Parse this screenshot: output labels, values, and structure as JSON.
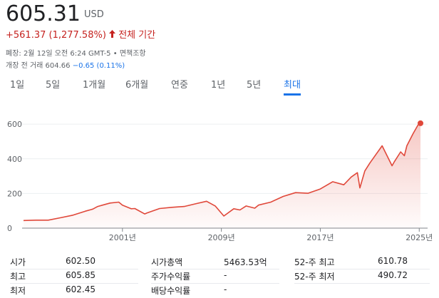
{
  "header": {
    "price": "605.31",
    "currency": "USD",
    "change": "+561.37 (1,277.58%)",
    "period": "전체 기간",
    "closed": "폐장: 2월 12일 오전 6:24 GMT-5 • ",
    "disclaimer": "면책조항",
    "premarket": "개장 전 거래 604.66",
    "premarket_change": "−0.65 (0.11%)"
  },
  "tabs": [
    "1일",
    "5일",
    "1개월",
    "6개월",
    "연중",
    "1년",
    "5년",
    "최대"
  ],
  "selected_tab": 7,
  "chart_data": {
    "type": "line",
    "color": "#e0483a",
    "grid": true,
    "x": [
      1993,
      1994,
      1995,
      1996,
      1997,
      1998,
      1998.6,
      1999,
      1999.5,
      2000,
      2000.7,
      2001,
      2001.7,
      2002,
      2002.8,
      2003,
      2004,
      2005,
      2006,
      2007,
      2007.8,
      2008.5,
      2009.2,
      2010,
      2010.5,
      2011,
      2011.7,
      2012,
      2013,
      2014,
      2015,
      2016,
      2017,
      2018,
      2018.9,
      2019.5,
      2020,
      2020.2,
      2020.6,
      2021,
      2021.5,
      2022,
      2022.8,
      2023,
      2023.5,
      2023.8,
      2024,
      2024.5,
      2024.9,
      2025.1
    ],
    "series": [
      {
        "values": [
          44,
          46,
          46,
          60,
          75,
          98,
          110,
          125,
          135,
          145,
          150,
          133,
          112,
          113,
          82,
          88,
          113,
          120,
          125,
          142,
          155,
          128,
          70,
          112,
          105,
          128,
          115,
          133,
          150,
          183,
          205,
          201,
          226,
          268,
          250,
          295,
          320,
          232,
          330,
          375,
          425,
          475,
          360,
          385,
          440,
          418,
          475,
          545,
          595,
          605.31
        ],
        "color": "#e0483a"
      }
    ],
    "xlim": [
      1993,
      2025.1
    ],
    "xticks": [
      {
        "value": 2001,
        "label": "2001년"
      },
      {
        "value": 2009,
        "label": "2009년"
      },
      {
        "value": 2017,
        "label": "2017년"
      },
      {
        "value": 2025,
        "label": "2025년"
      }
    ],
    "ylim": [
      0,
      650
    ],
    "yticks": [
      0,
      200,
      400,
      600
    ]
  },
  "stats": [
    [
      [
        "시가",
        "602.50"
      ],
      [
        "최고",
        "605.85"
      ],
      [
        "최저",
        "602.45"
      ]
    ],
    [
      [
        "시가총액",
        "5463.53억"
      ],
      [
        "주가수익률",
        "-"
      ],
      [
        "배당수익률",
        "-"
      ]
    ],
    [
      [
        "52-주 최고",
        "610.78"
      ],
      [
        "52-주 최저",
        "490.72"
      ]
    ]
  ]
}
